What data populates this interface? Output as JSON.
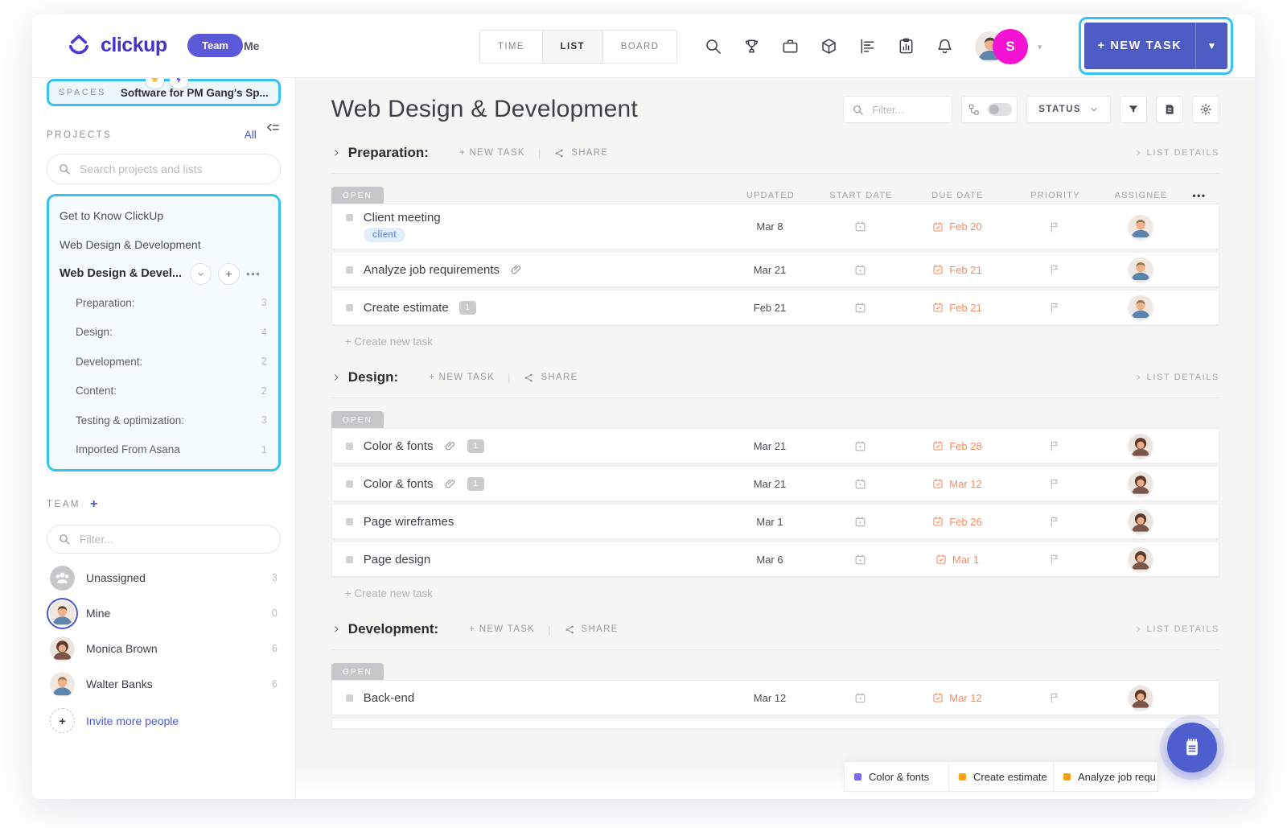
{
  "topbar": {
    "logo_text": "clickup",
    "team_label": "Team",
    "me_label": "Me",
    "tabs": [
      "TIME",
      "LIST",
      "BOARD"
    ],
    "active_tab": "LIST",
    "avatar_initial": "S",
    "new_task_label": "+ NEW TASK",
    "brand_color": "#4334c9",
    "button_color": "#4d5cc2",
    "avatar_badge_color": "#f413d3"
  },
  "annotation_color": "#35c4f2",
  "sidebar": {
    "spaces_label": "SPACES",
    "space_name": "Software for PM Gang's Sp...",
    "projects_label": "PROJECTS",
    "all_label": "All",
    "search_placeholder": "Search projects and lists",
    "projects": [
      {
        "label": "Get to Know ClickUp"
      },
      {
        "label": "Web Design & Development"
      }
    ],
    "active_project": {
      "label": "Web Design & Devel...",
      "menu_dots": "•••"
    },
    "lists": [
      {
        "label": "Preparation:",
        "count": "3"
      },
      {
        "label": "Design:",
        "count": "4"
      },
      {
        "label": "Development:",
        "count": "2"
      },
      {
        "label": "Content:",
        "count": "2"
      },
      {
        "label": "Testing & optimization:",
        "count": "3"
      },
      {
        "label": "Imported From Asana",
        "count": "1"
      }
    ],
    "team_label": "TEAM",
    "team_plus": "+",
    "filter_placeholder": "Filter...",
    "members": [
      {
        "name": "Unassigned",
        "count": "3",
        "avatar": "group",
        "ringed": false
      },
      {
        "name": "Mine",
        "count": "0",
        "avatar": "male",
        "ringed": true
      },
      {
        "name": "Monica Brown",
        "count": "6",
        "avatar": "female",
        "ringed": false
      },
      {
        "name": "Walter Banks",
        "count": "6",
        "avatar": "male2",
        "ringed": false
      }
    ],
    "invite_label": "Invite more people",
    "invite_plus": "+"
  },
  "main": {
    "title": "Web Design & Development",
    "filter_placeholder": "Filter...",
    "status_label": "STATUS",
    "columns": [
      "UPDATED",
      "START DATE",
      "DUE DATE",
      "PRIORITY",
      "ASSIGNEE"
    ],
    "columns_menu": "•••",
    "section_labels": {
      "new_task": "+ NEW TASK",
      "share": "SHARE",
      "list_details": "LIST DETAILS",
      "open": "OPEN",
      "create_new_task": "+  Create new task"
    },
    "due_date_color": "#fb8a60",
    "sections": [
      {
        "name": "Preparation:",
        "show_columns": true,
        "show_create": true,
        "partial_row": false,
        "tasks": [
          {
            "title": "Client meeting",
            "tag": "client",
            "attachment": false,
            "badge": "",
            "updated": "Mar 8",
            "due": "Feb 20",
            "avatar": "male2"
          },
          {
            "title": "Analyze job requirements",
            "tag": "",
            "attachment": true,
            "badge": "",
            "updated": "Mar 21",
            "due": "Feb 21",
            "avatar": "male2"
          },
          {
            "title": "Create estimate",
            "tag": "",
            "attachment": false,
            "badge": "1",
            "updated": "Feb 21",
            "due": "Feb 21",
            "avatar": "male2"
          }
        ]
      },
      {
        "name": "Design:",
        "show_columns": false,
        "show_create": true,
        "partial_row": false,
        "tasks": [
          {
            "title": "Color & fonts",
            "tag": "",
            "attachment": true,
            "badge": "1",
            "updated": "Mar 21",
            "due": "Feb 28",
            "avatar": "female"
          },
          {
            "title": "Color & fonts",
            "tag": "",
            "attachment": true,
            "badge": "1",
            "updated": "Mar 21",
            "due": "Mar 12",
            "avatar": "female"
          },
          {
            "title": "Page wireframes",
            "tag": "",
            "attachment": false,
            "badge": "",
            "updated": "Mar 1",
            "due": "Feb 26",
            "avatar": "female"
          },
          {
            "title": "Page design",
            "tag": "",
            "attachment": false,
            "badge": "",
            "updated": "Mar 6",
            "due": "Mar 1",
            "avatar": "female"
          }
        ]
      },
      {
        "name": "Development:",
        "show_columns": false,
        "show_create": false,
        "partial_row": true,
        "tasks": [
          {
            "title": "Back-end",
            "tag": "",
            "attachment": false,
            "badge": "",
            "updated": "Mar 12",
            "due": "Mar 12",
            "avatar": "female"
          }
        ]
      }
    ]
  },
  "tray": {
    "items": [
      {
        "label": "Color & fonts",
        "color": "#7b68ee"
      },
      {
        "label": "Create estimate",
        "color": "#ffa012"
      },
      {
        "label": "Analyze job requ",
        "color": "#ffa012"
      }
    ]
  }
}
